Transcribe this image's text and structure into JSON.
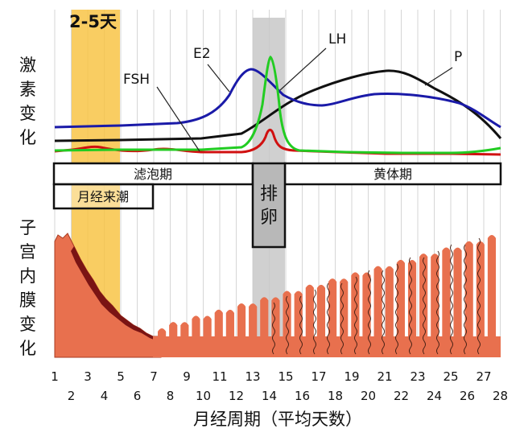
{
  "labels": {
    "highlight_days": "2-5天",
    "hormone_section": [
      "激",
      "素",
      "变",
      "化"
    ],
    "endometrium_section": [
      "子",
      "宫",
      "内",
      "膜",
      "变",
      "化"
    ],
    "follicular_phase": "滤泡期",
    "luteal_phase": "黄体期",
    "ovulation": [
      "排",
      "卵"
    ],
    "menstruation": "月经来潮",
    "x_axis_title": "月经周期（平均天数）"
  },
  "hormones": [
    {
      "name": "FSH",
      "color": "#d01010"
    },
    {
      "name": "E2",
      "color": "#1a1aa8"
    },
    {
      "name": "LH",
      "color": "#22cc22"
    },
    {
      "name": "P",
      "color": "#111111"
    }
  ],
  "days": [
    "1",
    "2",
    "3",
    "4",
    "5",
    "6",
    "7",
    "8",
    "9",
    "10",
    "11",
    "12",
    "13",
    "14",
    "15",
    "16",
    "17",
    "18",
    "19",
    "20",
    "21",
    "22",
    "23",
    "24",
    "25",
    "26",
    "27",
    "28"
  ],
  "colors": {
    "menstruation_band": "#f8c240",
    "ovulation_band": "#c8c8c8",
    "endometrium": "#e8704e",
    "grid": "#d6d6d6"
  }
}
